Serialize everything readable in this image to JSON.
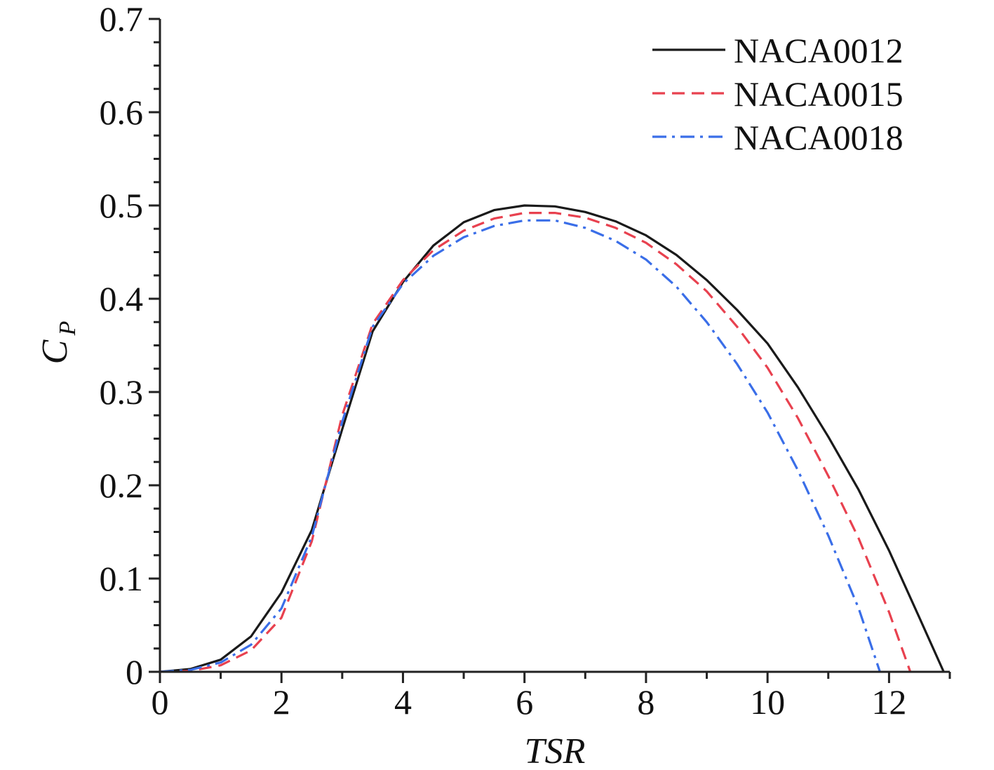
{
  "chart_data": {
    "type": "line",
    "title": "",
    "xlabel": "TSR",
    "ylabel_main": "C",
    "ylabel_sub": "P",
    "xlim": [
      0,
      13
    ],
    "ylim": [
      0,
      0.7
    ],
    "xticks": [
      0,
      2,
      4,
      6,
      8,
      10,
      12
    ],
    "xtick_labels": [
      "0",
      "2",
      "4",
      "6",
      "8",
      "10",
      "12"
    ],
    "xminor_step": 1,
    "yticks": [
      0,
      0.1,
      0.2,
      0.3,
      0.4,
      0.5,
      0.6,
      0.7
    ],
    "ytick_labels": [
      "0",
      "0.1",
      "0.2",
      "0.3",
      "0.4",
      "0.5",
      "0.6",
      "0.7"
    ],
    "yminor_step": 0.025,
    "grid": false,
    "legend_position": "top-right",
    "series": [
      {
        "name": "NACA0012",
        "color": "#1a1a1a",
        "style": "solid",
        "x": [
          0,
          0.5,
          1,
          1.5,
          2,
          2.5,
          3,
          3.5,
          4,
          4.5,
          5,
          5.5,
          6,
          6.5,
          7,
          7.5,
          8,
          8.5,
          9,
          9.5,
          10,
          10.5,
          11,
          11.5,
          12,
          12.5,
          12.9
        ],
        "y": [
          0,
          0.003,
          0.013,
          0.038,
          0.085,
          0.152,
          0.26,
          0.365,
          0.418,
          0.457,
          0.482,
          0.495,
          0.5,
          0.499,
          0.493,
          0.483,
          0.468,
          0.447,
          0.42,
          0.388,
          0.352,
          0.305,
          0.252,
          0.195,
          0.13,
          0.058,
          0
        ]
      },
      {
        "name": "NACA0015",
        "color": "#e8414f",
        "style": "dashed",
        "x": [
          0,
          0.5,
          1,
          1.5,
          2,
          2.5,
          3,
          3.5,
          4,
          4.5,
          5,
          5.5,
          6,
          6.5,
          7,
          7.5,
          8,
          8.5,
          9,
          9.5,
          10,
          10.5,
          11,
          11.5,
          12,
          12.35
        ],
        "y": [
          0,
          0.001,
          0.007,
          0.023,
          0.058,
          0.14,
          0.275,
          0.373,
          0.42,
          0.452,
          0.473,
          0.486,
          0.492,
          0.492,
          0.487,
          0.476,
          0.46,
          0.437,
          0.408,
          0.37,
          0.326,
          0.272,
          0.21,
          0.143,
          0.064,
          0
        ]
      },
      {
        "name": "NACA0018",
        "color": "#3a6ee8",
        "style": "dashdot",
        "x": [
          0,
          0.5,
          1,
          1.5,
          2,
          2.5,
          3,
          3.5,
          4,
          4.5,
          5,
          5.5,
          6,
          6.5,
          7,
          7.5,
          8,
          8.5,
          9,
          9.5,
          10,
          10.5,
          11,
          11.5,
          11.85
        ],
        "y": [
          0,
          0.002,
          0.01,
          0.029,
          0.068,
          0.145,
          0.268,
          0.37,
          0.416,
          0.446,
          0.466,
          0.478,
          0.484,
          0.484,
          0.476,
          0.462,
          0.442,
          0.413,
          0.375,
          0.33,
          0.278,
          0.216,
          0.146,
          0.068,
          0
        ]
      }
    ]
  }
}
